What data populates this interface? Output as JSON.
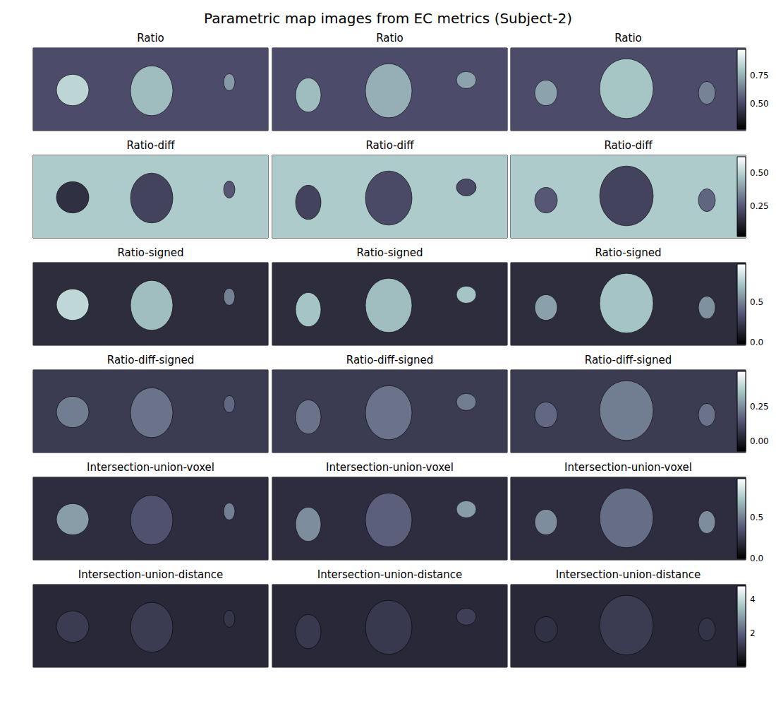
{
  "chart_data": {
    "type": "heatmap",
    "title": "Parametric map images from EC metrics (Subject-2)",
    "xlim": [
      0,
      333
    ],
    "ylim": [
      0,
      116
    ],
    "xticks": [],
    "yticks": [],
    "tick_labels": false,
    "columns": [
      {
        "blobs": [
          {
            "x": 56,
            "y": 59,
            "rx": 23,
            "ry": 22
          },
          {
            "x": 168,
            "y": 60,
            "rx": 30,
            "ry": 35
          },
          {
            "x": 278,
            "y": 48,
            "rx": 8,
            "ry": 12
          }
        ]
      },
      {
        "blobs": [
          {
            "x": 51,
            "y": 66,
            "rx": 18,
            "ry": 24
          },
          {
            "x": 165,
            "y": 60,
            "rx": 33,
            "ry": 38
          },
          {
            "x": 275,
            "y": 45,
            "rx": 14,
            "ry": 12
          }
        ]
      },
      {
        "blobs": [
          {
            "x": 50,
            "y": 63,
            "rx": 16,
            "ry": 18
          },
          {
            "x": 164,
            "y": 57,
            "rx": 38,
            "ry": 42
          },
          {
            "x": 278,
            "y": 63,
            "rx": 12,
            "ry": 16
          }
        ]
      }
    ],
    "rows": [
      {
        "title": "Ratio",
        "colorbar": {
          "range": [
            0.28,
            0.98
          ],
          "ticks": [
            {
              "value": 0.5,
              "label": "0.50"
            },
            {
              "value": 0.75,
              "label": "0.75"
            }
          ]
        },
        "panels": [
          {
            "background": 0.52,
            "values": [
              0.85,
              0.78,
              0.7
            ]
          },
          {
            "background": 0.52,
            "values": [
              0.78,
              0.75,
              0.72
            ]
          },
          {
            "background": 0.52,
            "values": [
              0.72,
              0.8,
              0.65
            ]
          }
        ]
      },
      {
        "title": "Ratio-diff",
        "colorbar": {
          "range": [
            0.02,
            0.62
          ],
          "ticks": [
            {
              "value": 0.25,
              "label": "0.25"
            },
            {
              "value": 0.5,
              "label": "0.50"
            }
          ]
        },
        "panels": [
          {
            "background": 0.48,
            "values": [
              0.15,
              0.2,
              0.25
            ]
          },
          {
            "background": 0.48,
            "values": [
              0.2,
              0.22,
              0.22
            ]
          },
          {
            "background": 0.48,
            "values": [
              0.25,
              0.2,
              0.28
            ]
          }
        ]
      },
      {
        "title": "Ratio-signed",
        "colorbar": {
          "range": [
            -0.02,
            0.98
          ],
          "ticks": [
            {
              "value": 0,
              "label": "0.0"
            },
            {
              "value": 0.5,
              "label": "0.5"
            }
          ]
        },
        "panels": [
          {
            "background": 0.18,
            "values": [
              0.8,
              0.7,
              0.5
            ]
          },
          {
            "background": 0.18,
            "values": [
              0.72,
              0.7,
              0.72
            ]
          },
          {
            "background": 0.18,
            "values": [
              0.6,
              0.72,
              0.55
            ]
          }
        ]
      },
      {
        "title": "Ratio-diff-signed",
        "colorbar": {
          "range": [
            -0.07,
            0.5
          ],
          "ticks": [
            {
              "value": 0,
              "label": "0.00"
            },
            {
              "value": 0.25,
              "label": "0.25"
            }
          ]
        },
        "panels": [
          {
            "background": 0.08,
            "values": [
              0.22,
              0.2,
              0.18
            ]
          },
          {
            "background": 0.08,
            "values": [
              0.2,
              0.2,
              0.22
            ]
          },
          {
            "background": 0.08,
            "values": [
              0.18,
              0.22,
              0.2
            ]
          }
        ]
      },
      {
        "title": "Intersection-union-voxel",
        "colorbar": {
          "range": [
            0,
            0.98
          ],
          "ticks": [
            {
              "value": 0,
              "label": "0.0"
            },
            {
              "value": 0.5,
              "label": "0.5"
            }
          ]
        },
        "panels": [
          {
            "background": 0.2,
            "values": [
              0.6,
              0.35,
              0.5
            ]
          },
          {
            "background": 0.2,
            "values": [
              0.55,
              0.4,
              0.6
            ]
          },
          {
            "background": 0.2,
            "values": [
              0.55,
              0.45,
              0.55
            ]
          }
        ]
      },
      {
        "title": "Intersection-union-distance",
        "colorbar": {
          "range": [
            0.05,
            4.8
          ],
          "ticks": [
            2,
            4
          ]
        },
        "panels": [
          {
            "background": 0.9,
            "values": [
              1.3,
              1.3,
              1.2
            ]
          },
          {
            "background": 0.9,
            "values": [
              1.25,
              1.25,
              1.4
            ]
          },
          {
            "background": 0.9,
            "values": [
              1.1,
              1.3,
              1.15
            ]
          }
        ]
      }
    ]
  }
}
